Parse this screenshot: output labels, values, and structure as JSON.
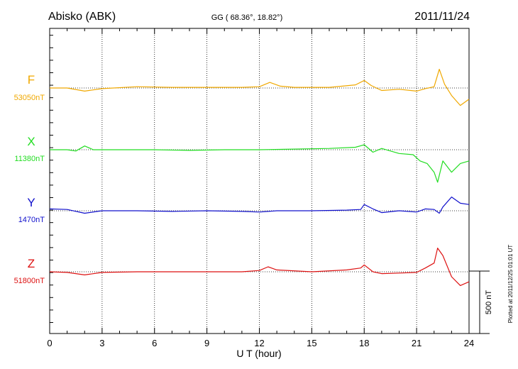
{
  "header": {
    "station": "Abisko (ABK)",
    "coords": "GG ( 68.36°,  18.82°)",
    "date": "2011/11/24"
  },
  "footer": {
    "plotted": "Plotted at 2011/12/25 01:01  UT"
  },
  "chart_data": {
    "type": "line",
    "xlabel": "U T (hour)",
    "xlim": [
      0,
      24
    ],
    "xticks": [
      0,
      3,
      6,
      9,
      12,
      15,
      18,
      21,
      24
    ],
    "scale_bar_label": "500 nT",
    "grid": "dotted vertical at 3-hour intervals, horizontal baseline per series",
    "series": [
      {
        "name": "F",
        "baseline_label": "53050nT",
        "color": "#f0a800",
        "offset_nT": [
          [
            0,
            0
          ],
          [
            1,
            0
          ],
          [
            2,
            -25
          ],
          [
            3,
            -5
          ],
          [
            5,
            10
          ],
          [
            7,
            5
          ],
          [
            9,
            5
          ],
          [
            11,
            5
          ],
          [
            12,
            10
          ],
          [
            12.6,
            45
          ],
          [
            13.2,
            15
          ],
          [
            14,
            5
          ],
          [
            16,
            5
          ],
          [
            17.5,
            25
          ],
          [
            18,
            60
          ],
          [
            18.4,
            20
          ],
          [
            19,
            -20
          ],
          [
            20,
            -10
          ],
          [
            21,
            -25
          ],
          [
            21.5,
            -5
          ],
          [
            22,
            10
          ],
          [
            22.3,
            150
          ],
          [
            22.6,
            30
          ],
          [
            23,
            -60
          ],
          [
            23.5,
            -140
          ],
          [
            24,
            -90
          ]
        ]
      },
      {
        "name": "X",
        "baseline_label": "11380nT",
        "color": "#22dd22",
        "offset_nT": [
          [
            0,
            0
          ],
          [
            1,
            0
          ],
          [
            1.5,
            -10
          ],
          [
            2,
            30
          ],
          [
            2.5,
            0
          ],
          [
            4,
            0
          ],
          [
            6,
            0
          ],
          [
            8,
            -5
          ],
          [
            10,
            0
          ],
          [
            12,
            0
          ],
          [
            14,
            5
          ],
          [
            16,
            10
          ],
          [
            17.5,
            20
          ],
          [
            18,
            40
          ],
          [
            18.5,
            -20
          ],
          [
            19,
            10
          ],
          [
            20,
            -30
          ],
          [
            20.8,
            -40
          ],
          [
            21.2,
            -90
          ],
          [
            21.6,
            -110
          ],
          [
            22,
            -180
          ],
          [
            22.2,
            -260
          ],
          [
            22.5,
            -90
          ],
          [
            23,
            -180
          ],
          [
            23.5,
            -110
          ],
          [
            24,
            -90
          ]
        ]
      },
      {
        "name": "Y",
        "baseline_label": "1470nT",
        "color": "#1010cc",
        "offset_nT": [
          [
            0,
            15
          ],
          [
            1,
            10
          ],
          [
            2,
            -20
          ],
          [
            3,
            0
          ],
          [
            5,
            0
          ],
          [
            7,
            -5
          ],
          [
            9,
            0
          ],
          [
            11,
            -5
          ],
          [
            12,
            -10
          ],
          [
            13,
            0
          ],
          [
            15,
            0
          ],
          [
            17,
            5
          ],
          [
            17.8,
            10
          ],
          [
            18,
            50
          ],
          [
            18.5,
            15
          ],
          [
            19,
            -15
          ],
          [
            20,
            0
          ],
          [
            21,
            -10
          ],
          [
            21.5,
            15
          ],
          [
            22,
            10
          ],
          [
            22.3,
            -20
          ],
          [
            22.5,
            30
          ],
          [
            23,
            110
          ],
          [
            23.5,
            60
          ],
          [
            24,
            50
          ]
        ]
      },
      {
        "name": "Z",
        "baseline_label": "51800nT",
        "color": "#dd1111",
        "offset_nT": [
          [
            0,
            0
          ],
          [
            1,
            -5
          ],
          [
            2,
            -25
          ],
          [
            3,
            -5
          ],
          [
            5,
            0
          ],
          [
            7,
            0
          ],
          [
            9,
            0
          ],
          [
            11,
            0
          ],
          [
            12,
            10
          ],
          [
            12.5,
            40
          ],
          [
            13,
            15
          ],
          [
            15,
            0
          ],
          [
            17,
            15
          ],
          [
            17.8,
            30
          ],
          [
            18,
            55
          ],
          [
            18.5,
            0
          ],
          [
            19,
            -15
          ],
          [
            20,
            -10
          ],
          [
            21,
            -5
          ],
          [
            21.5,
            30
          ],
          [
            22,
            70
          ],
          [
            22.2,
            190
          ],
          [
            22.5,
            130
          ],
          [
            23,
            -40
          ],
          [
            23.5,
            -110
          ],
          [
            24,
            -80
          ]
        ]
      }
    ]
  }
}
